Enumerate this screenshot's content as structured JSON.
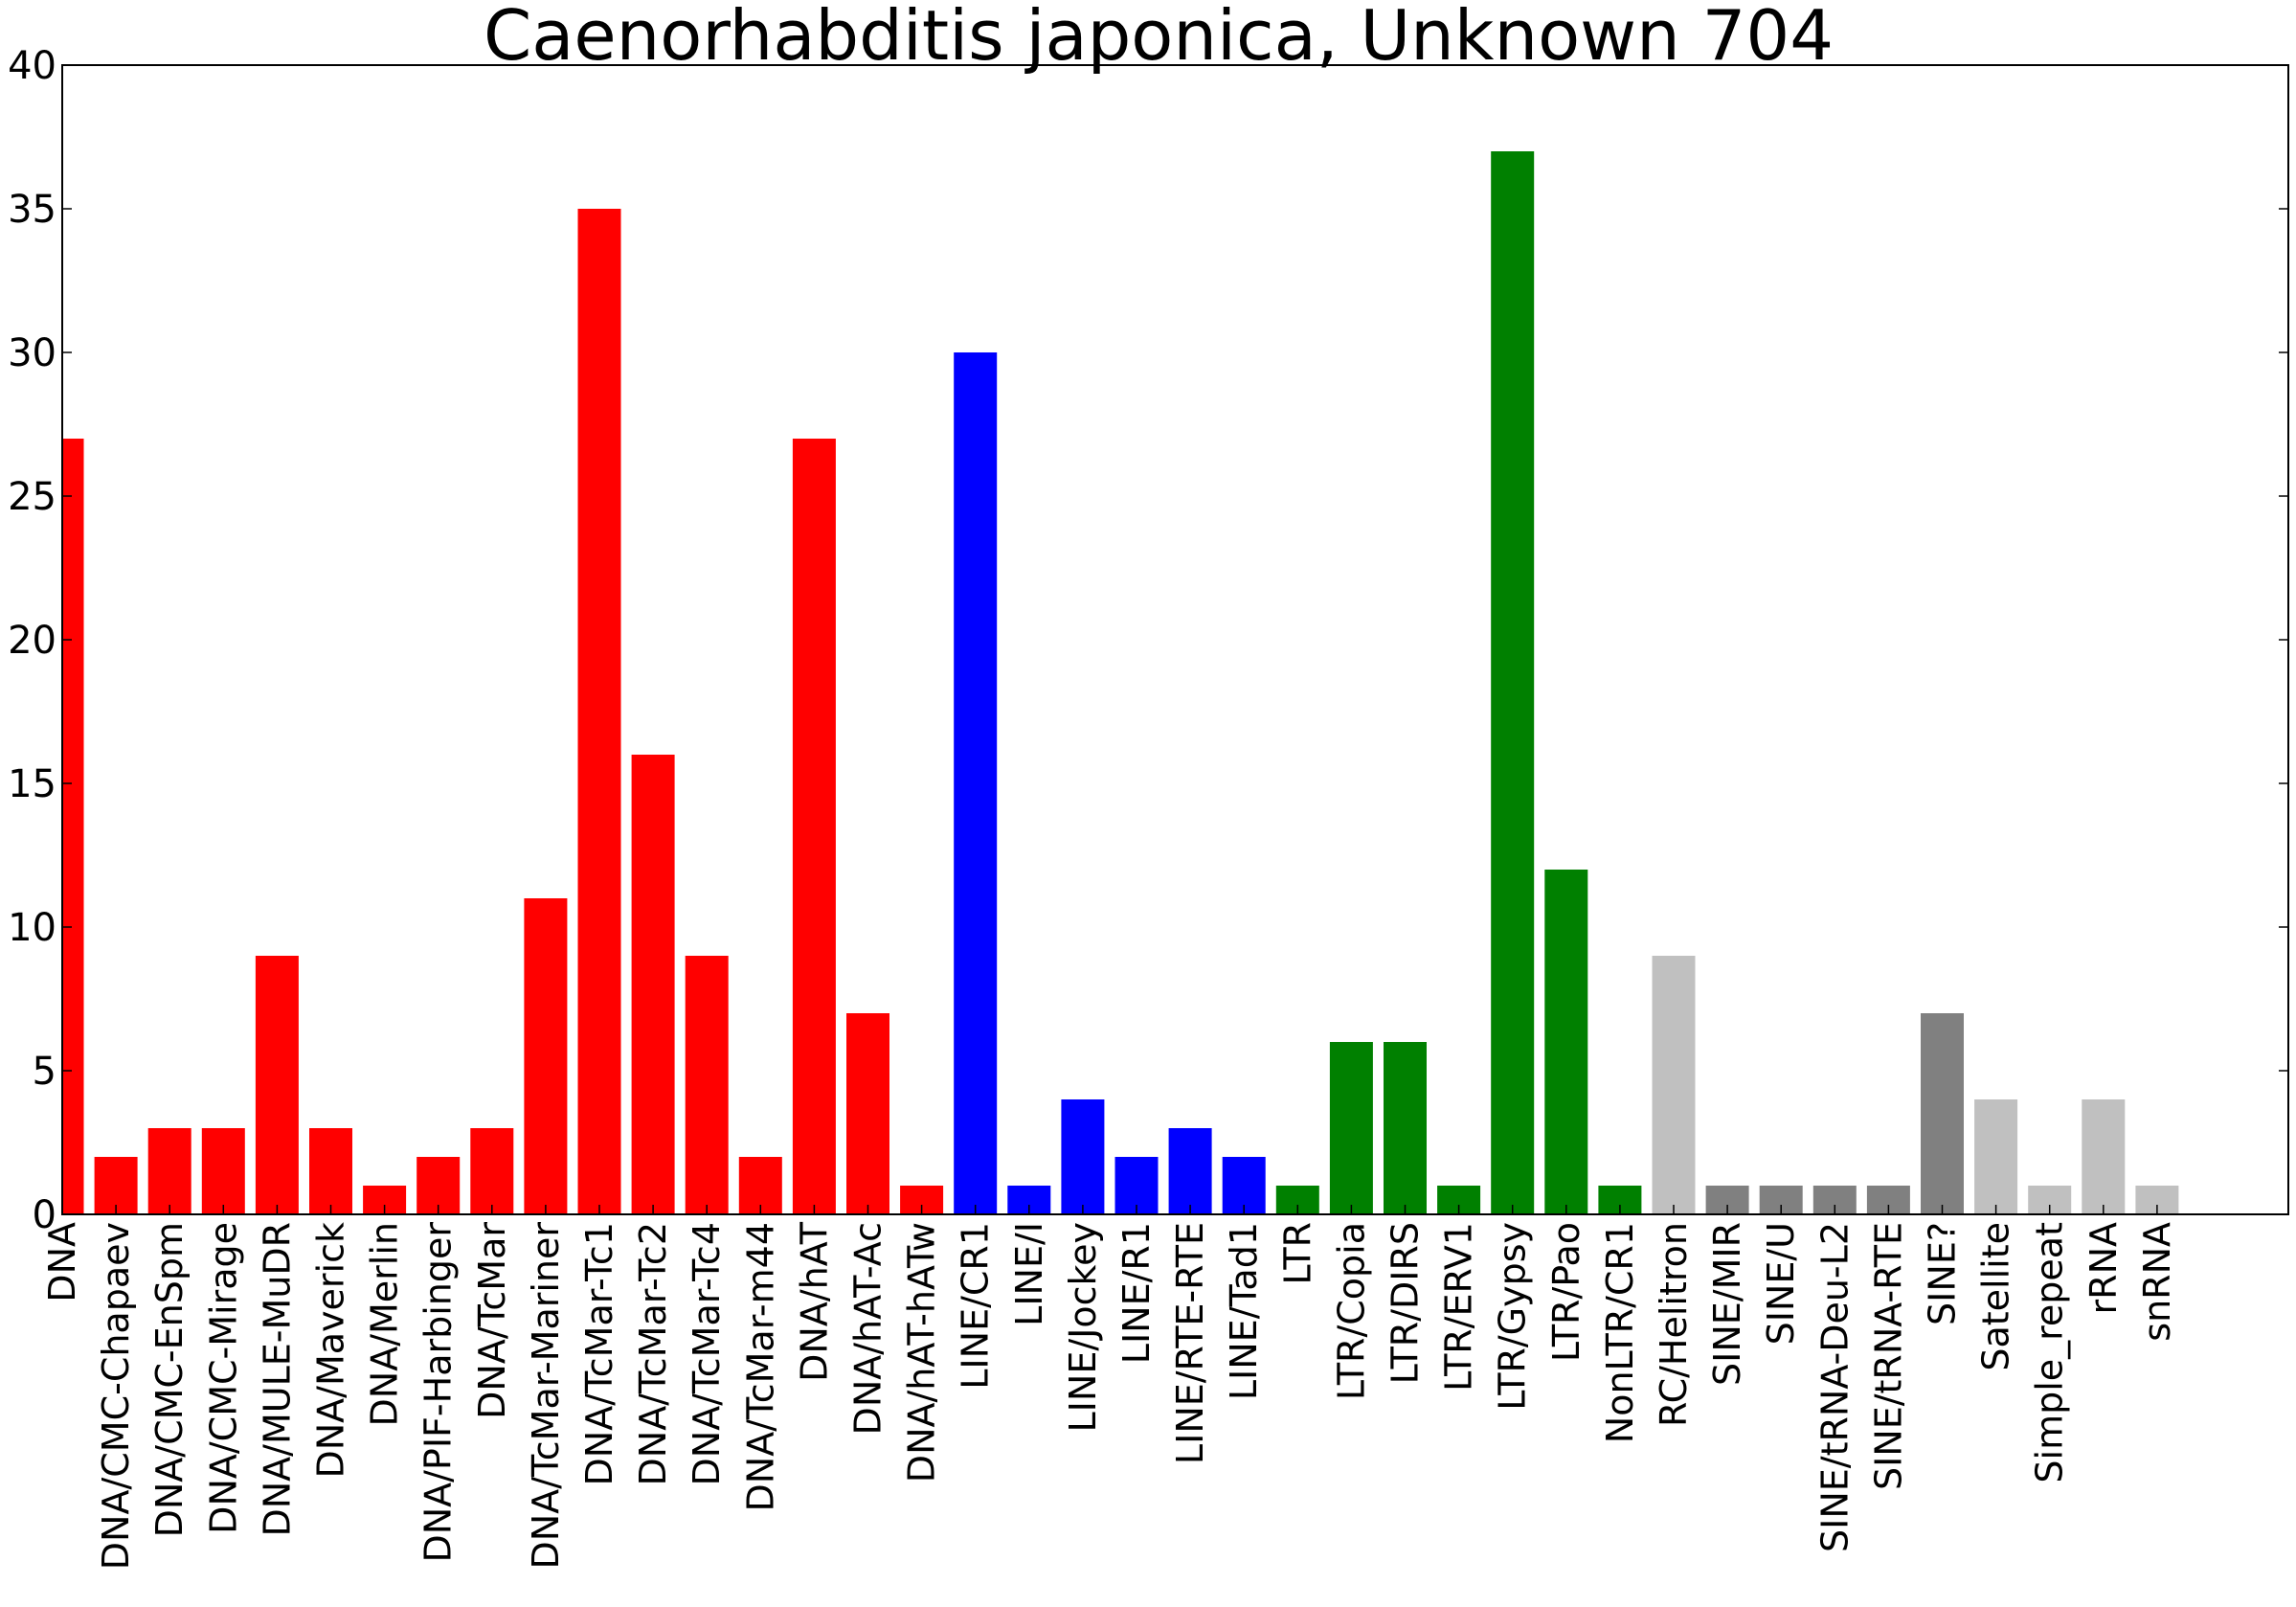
{
  "chart_data": {
    "type": "bar",
    "title": "Caenorhabditis japonica, Unknown 704",
    "xlabel": "",
    "ylabel": "",
    "ylim": [
      0,
      40
    ],
    "yticks": [
      0,
      5,
      10,
      15,
      20,
      25,
      30,
      35,
      40
    ],
    "grid": false,
    "legend": "none",
    "colors": {
      "DNA": "#ff0000",
      "LINE": "#0000ff",
      "LTR": "#008000",
      "light_gray": "#c0c0c0",
      "dark_gray": "#808080"
    },
    "categories": [
      "DNA",
      "DNA/CMC-Chapaev",
      "DNA/CMC-EnSpm",
      "DNA/CMC-Mirage",
      "DNA/MULE-MuDR",
      "DNA/Maverick",
      "DNA/Merlin",
      "DNA/PIF-Harbinger",
      "DNA/TcMar",
      "DNA/TcMar-Mariner",
      "DNA/TcMar-Tc1",
      "DNA/TcMar-Tc2",
      "DNA/TcMar-Tc4",
      "DNA/TcMar-m44",
      "DNA/hAT",
      "DNA/hAT-Ac",
      "DNA/hAT-hATw",
      "LINE/CR1",
      "LINE/I",
      "LINE/Jockey",
      "LINE/R1",
      "LINE/RTE-RTE",
      "LINE/Tad1",
      "LTR",
      "LTR/Copia",
      "LTR/DIRS",
      "LTR/ERV1",
      "LTR/Gypsy",
      "LTR/Pao",
      "NonLTR/CR1",
      "RC/Helitron",
      "SINE/MIR",
      "SINE/U",
      "SINE/tRNA-Deu-L2",
      "SINE/tRNA-RTE",
      "SINE?",
      "Satellite",
      "Simple_repeat",
      "rRNA",
      "snRNA"
    ],
    "values": [
      27,
      2,
      3,
      3,
      9,
      3,
      1,
      2,
      3,
      11,
      35,
      16,
      9,
      2,
      27,
      7,
      1,
      30,
      1,
      4,
      2,
      3,
      2,
      1,
      6,
      6,
      1,
      37,
      12,
      1,
      9,
      1,
      1,
      1,
      1,
      7,
      4,
      1,
      4,
      1
    ],
    "bar_colors": [
      "#ff0000",
      "#ff0000",
      "#ff0000",
      "#ff0000",
      "#ff0000",
      "#ff0000",
      "#ff0000",
      "#ff0000",
      "#ff0000",
      "#ff0000",
      "#ff0000",
      "#ff0000",
      "#ff0000",
      "#ff0000",
      "#ff0000",
      "#ff0000",
      "#ff0000",
      "#0000ff",
      "#0000ff",
      "#0000ff",
      "#0000ff",
      "#0000ff",
      "#0000ff",
      "#008000",
      "#008000",
      "#008000",
      "#008000",
      "#008000",
      "#008000",
      "#008000",
      "#c0c0c0",
      "#808080",
      "#808080",
      "#808080",
      "#808080",
      "#808080",
      "#c0c0c0",
      "#c0c0c0",
      "#c0c0c0",
      "#c0c0c0"
    ]
  }
}
